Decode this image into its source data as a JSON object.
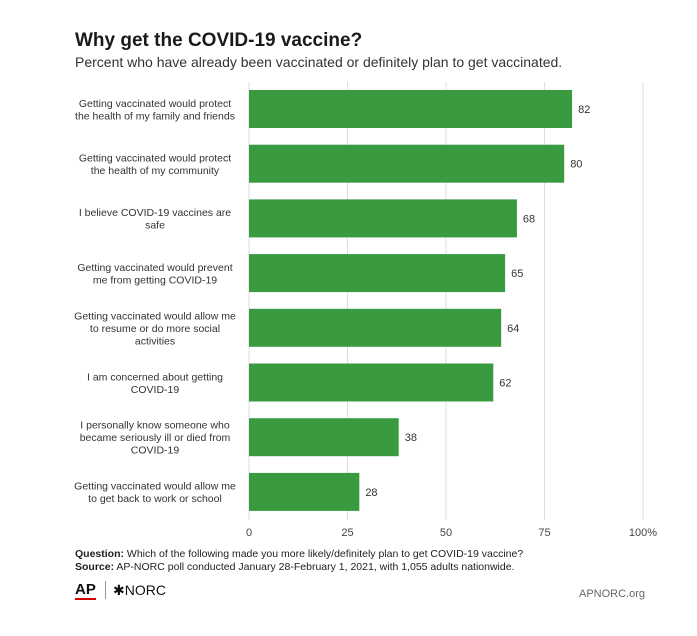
{
  "chart_data": {
    "type": "bar",
    "orientation": "horizontal",
    "title": "Why get the COVID-19 vaccine?",
    "subtitle": "Percent who have already been vaccinated or definitely plan to get vaccinated.",
    "categories": [
      [
        "Getting vaccinated would protect",
        "the health of my family and friends"
      ],
      [
        "Getting vaccinated would protect",
        "the health of my community"
      ],
      [
        "I believe COVID-19 vaccines are",
        "safe"
      ],
      [
        "Getting vaccinated would prevent",
        "me from getting COVID-19"
      ],
      [
        "Getting vaccinated would allow me",
        "to resume or do more social",
        "activities"
      ],
      [
        "I am concerned about getting",
        "COVID-19"
      ],
      [
        "I personally know someone who",
        "became seriously ill or died from",
        "COVID-19"
      ],
      [
        "Getting vaccinated would allow me",
        "to get back to work or school"
      ]
    ],
    "values": [
      82,
      80,
      68,
      65,
      64,
      62,
      38,
      28
    ],
    "xlim": [
      0,
      100
    ],
    "xticks": [
      "0",
      "25",
      "50",
      "75",
      "100%"
    ],
    "xtick_values": [
      0,
      25,
      50,
      75,
      100
    ],
    "grid": true,
    "bar_color": "#3a9a3f"
  },
  "notes": {
    "question_label": "Question:",
    "question_text": " Which of the following made you more likely/definitely plan to get COVID-19 vaccine?",
    "source_label": "Source:",
    "source_text": " AP-NORC poll conducted January 28-February 1, 2021, with 1,055 adults nationwide."
  },
  "footer": {
    "ap_logo": "AP",
    "norc_logo": "✱NORC",
    "site": "APNORC.org"
  }
}
